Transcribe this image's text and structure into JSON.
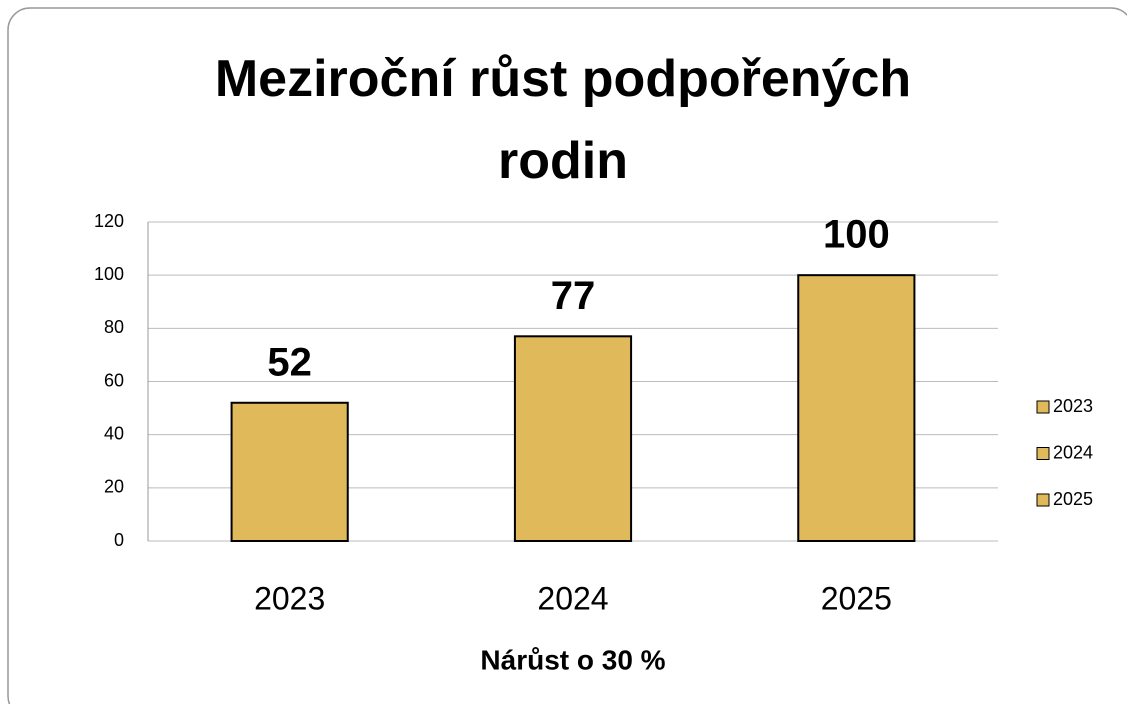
{
  "chart_data": {
    "type": "bar",
    "title": "Meziroční růst podpořených rodin",
    "categories": [
      "2023",
      "2024",
      "2025"
    ],
    "values": [
      52,
      77,
      100
    ],
    "color": "#e0b95a",
    "xlabel": "Nárůst o 30 %",
    "ylim": [
      0,
      120
    ],
    "yticks": [
      0,
      20,
      40,
      60,
      80,
      100,
      120
    ],
    "grid": true,
    "legend": "right"
  }
}
